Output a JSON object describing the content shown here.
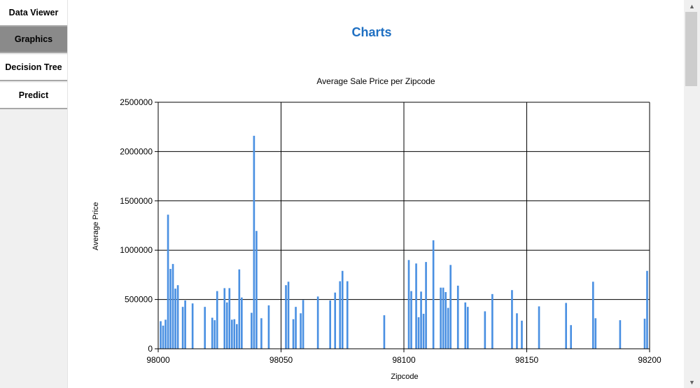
{
  "sidebar": {
    "items": [
      {
        "label": "Data Viewer",
        "active": false
      },
      {
        "label": "Graphics",
        "active": true
      },
      {
        "label": "Decision Tree",
        "active": false
      },
      {
        "label": "Predict",
        "active": false
      }
    ]
  },
  "page": {
    "title": "Charts",
    "title_color": "#1e6fc2"
  },
  "scrollbar": {
    "up_icon": "chevron-up-icon",
    "down_icon": "chevron-down-icon"
  },
  "chart_data": {
    "type": "bar",
    "title": "Average Sale Price per Zipcode",
    "xlabel": "Zipcode",
    "ylabel": "Average Price",
    "xlim": [
      98000,
      98200
    ],
    "ylim": [
      0,
      2500000
    ],
    "x_ticks": [
      "98000",
      "98050",
      "98100",
      "98150",
      "98200"
    ],
    "y_ticks": [
      "0",
      "500000",
      "1000000",
      "1500000",
      "2000000",
      "2500000"
    ],
    "grid": true,
    "legend": "none",
    "bar_color": "#4a90e2",
    "x": [
      98001,
      98002,
      98003,
      98004,
      98005,
      98006,
      98007,
      98008,
      98010,
      98011,
      98014,
      98019,
      98022,
      98023,
      98024,
      98027,
      98028,
      98029,
      98030,
      98031,
      98032,
      98033,
      98034,
      98038,
      98039,
      98040,
      98042,
      98045,
      98052,
      98053,
      98055,
      98056,
      98058,
      98059,
      98065,
      98070,
      98072,
      98074,
      98075,
      98077,
      98092,
      98102,
      98103,
      98105,
      98106,
      98107,
      98108,
      98109,
      98112,
      98115,
      98116,
      98117,
      98118,
      98119,
      98122,
      98125,
      98126,
      98133,
      98136,
      98144,
      98146,
      98148,
      98155,
      98166,
      98168,
      98177,
      98178,
      98188,
      98198,
      98199
    ],
    "values": [
      280000,
      235000,
      295000,
      1360000,
      810000,
      860000,
      610000,
      645000,
      425000,
      490000,
      460000,
      425000,
      315000,
      290000,
      585000,
      615000,
      470000,
      615000,
      295000,
      300000,
      250000,
      805000,
      520000,
      365000,
      2160000,
      1195000,
      310000,
      440000,
      645000,
      680000,
      300000,
      425000,
      360000,
      495000,
      530000,
      490000,
      570000,
      685000,
      790000,
      685000,
      340000,
      900000,
      585000,
      865000,
      320000,
      580000,
      355000,
      880000,
      1100000,
      620000,
      620000,
      575000,
      415000,
      850000,
      640000,
      470000,
      425000,
      380000,
      555000,
      595000,
      360000,
      285000,
      430000,
      465000,
      240000,
      680000,
      310000,
      290000,
      305000,
      790000
    ]
  }
}
